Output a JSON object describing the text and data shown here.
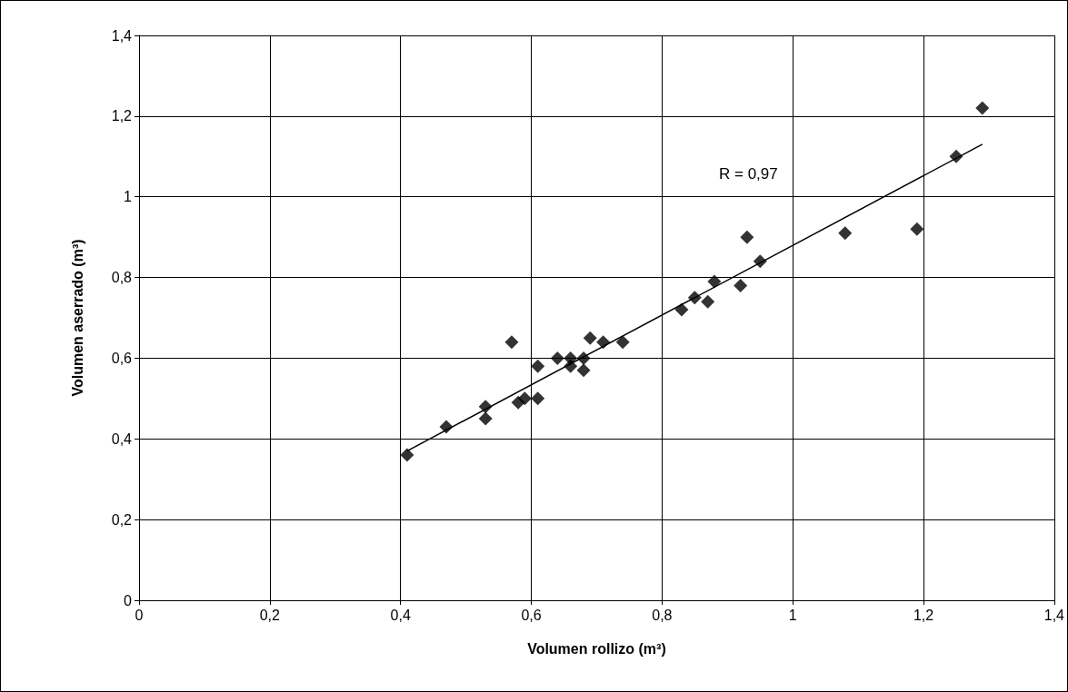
{
  "chart_data": {
    "type": "scatter",
    "xlabel": "Volumen rollizo (m³)",
    "ylabel": "Volumen aserrado (m³)",
    "marker": "diamond",
    "grid": true,
    "xlim": [
      0,
      1.4
    ],
    "ylim": [
      0,
      1.4
    ],
    "xticks": [
      0,
      {
        "value": 0.2,
        "label": "0,2"
      },
      {
        "value": 0.4,
        "label": "0,4"
      },
      {
        "value": 0.6,
        "label": "0,6"
      },
      {
        "value": 0.8,
        "label": "0,8"
      },
      1,
      {
        "value": 1.2,
        "label": "1,2"
      },
      {
        "value": 1.4,
        "label": "1,4"
      }
    ],
    "yticks": [
      0,
      {
        "value": 0.2,
        "label": "0,2"
      },
      {
        "value": 0.4,
        "label": "0,4"
      },
      {
        "value": 0.6,
        "label": "0,6"
      },
      {
        "value": 0.8,
        "label": "0,8"
      },
      1,
      {
        "value": 1.2,
        "label": "1,2"
      },
      {
        "value": 1.4,
        "label": "1,4"
      }
    ],
    "annotations": [
      "R = 0,97"
    ],
    "series": [
      {
        "color": "#000000",
        "x": [
          0.41,
          0.47,
          0.53,
          0.53,
          0.57,
          0.58,
          0.59,
          0.61,
          0.61,
          0.64,
          0.66,
          0.66,
          0.68,
          0.68,
          0.69,
          0.71,
          0.74,
          0.83,
          0.85,
          0.87,
          0.88,
          0.92,
          0.93,
          0.95,
          1.08,
          1.19,
          1.25,
          1.29
        ],
        "values": [
          0.36,
          0.43,
          0.48,
          0.45,
          0.64,
          0.49,
          0.5,
          0.5,
          0.58,
          0.6,
          0.6,
          0.58,
          0.6,
          0.57,
          0.65,
          0.64,
          0.64,
          0.72,
          0.75,
          0.74,
          0.79,
          0.78,
          0.9,
          0.84,
          0.91,
          0.92,
          1.1,
          1.22
        ]
      },
      {
        "type": "line",
        "color": "#000000",
        "marker": "none",
        "x": [
          0.41,
          1.29
        ],
        "values": [
          0.37,
          1.13
        ]
      }
    ]
  }
}
